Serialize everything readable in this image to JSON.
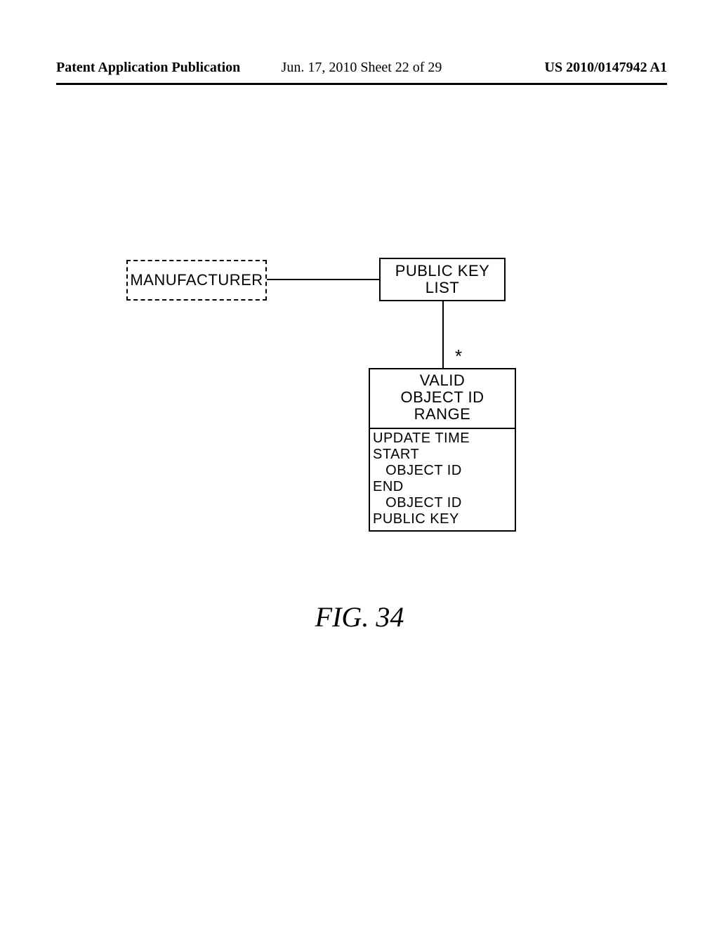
{
  "header": {
    "left": "Patent Application Publication",
    "center": "Jun. 17, 2010  Sheet 22 of 29",
    "right": "US 2010/0147942 A1"
  },
  "colors": {
    "stroke": "#000000",
    "background": "#ffffff"
  },
  "diagram": {
    "type": "uml-class",
    "nodes": {
      "manufacturer": {
        "label": "MANUFACTURER",
        "border": "dashed"
      },
      "publicKeyList": {
        "label": "PUBLIC KEY\nLIST",
        "border": "solid"
      },
      "validRange": {
        "title": "VALID\nOBJECT ID\nRANGE",
        "attributes": [
          "UPDATE TIME",
          "START",
          "   OBJECT ID",
          "END",
          "   OBJECT ID",
          "PUBLIC KEY"
        ],
        "border": "solid"
      }
    },
    "edges": [
      {
        "from": "manufacturer",
        "to": "publicKeyList",
        "multiplicity_to": ""
      },
      {
        "from": "publicKeyList",
        "to": "validRange",
        "multiplicity_to": "*"
      }
    ],
    "multiplicity_star": "*"
  },
  "caption": "FIG. 34"
}
